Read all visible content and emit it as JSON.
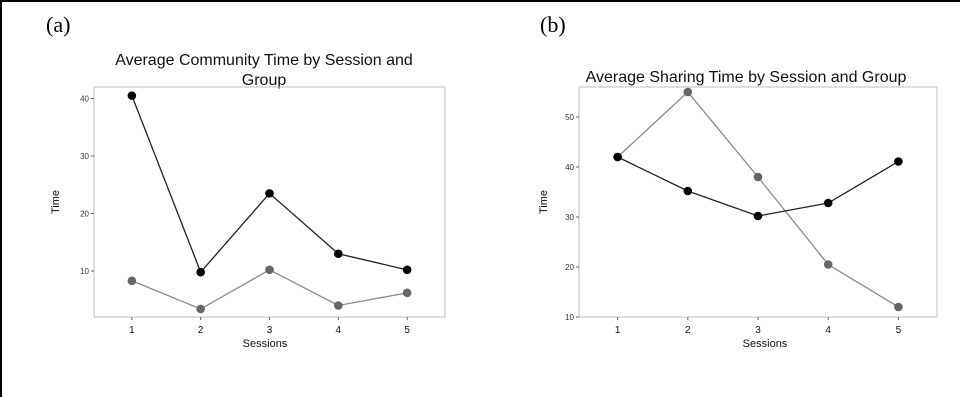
{
  "panels": [
    {
      "tag": "(a)",
      "title_line1": "Average Community Time by Session and",
      "title_line2": "Group"
    },
    {
      "tag": "(b)",
      "title_line1": "Average Sharing Time by Session and Group",
      "title_line2": ""
    }
  ],
  "chart_data": [
    {
      "type": "line",
      "title": "Average Community Time by Session and Group",
      "xlabel": "Sessions",
      "ylabel": "Time",
      "x": [
        1,
        2,
        3,
        4,
        5
      ],
      "xlim": [
        0.45,
        5.55
      ],
      "ylim": [
        2,
        42
      ],
      "yticks": [
        10,
        20,
        30,
        40
      ],
      "grid": false,
      "legend": "none",
      "series": [
        {
          "color": "#222222",
          "marker_color": "#000000",
          "values": [
            40.5,
            9.8,
            23.5,
            13.0,
            10.2
          ]
        },
        {
          "color": "#8a8a8a",
          "marker_color": "#666666",
          "values": [
            8.3,
            3.4,
            10.2,
            4.0,
            6.2
          ]
        }
      ]
    },
    {
      "type": "line",
      "title": "Average Sharing Time by Session and Group",
      "xlabel": "Sessions",
      "ylabel": "Time",
      "x": [
        1,
        2,
        3,
        4,
        5
      ],
      "xlim": [
        0.45,
        5.55
      ],
      "ylim": [
        10,
        56
      ],
      "yticks": [
        10,
        20,
        30,
        40,
        50
      ],
      "grid": false,
      "legend": "none",
      "series": [
        {
          "color": "#222222",
          "marker_color": "#000000",
          "values": [
            42,
            35.2,
            30.2,
            32.8,
            41.1
          ]
        },
        {
          "color": "#8a8a8a",
          "marker_color": "#666666",
          "values": [
            42,
            55,
            38,
            20.5,
            12
          ]
        }
      ]
    }
  ]
}
